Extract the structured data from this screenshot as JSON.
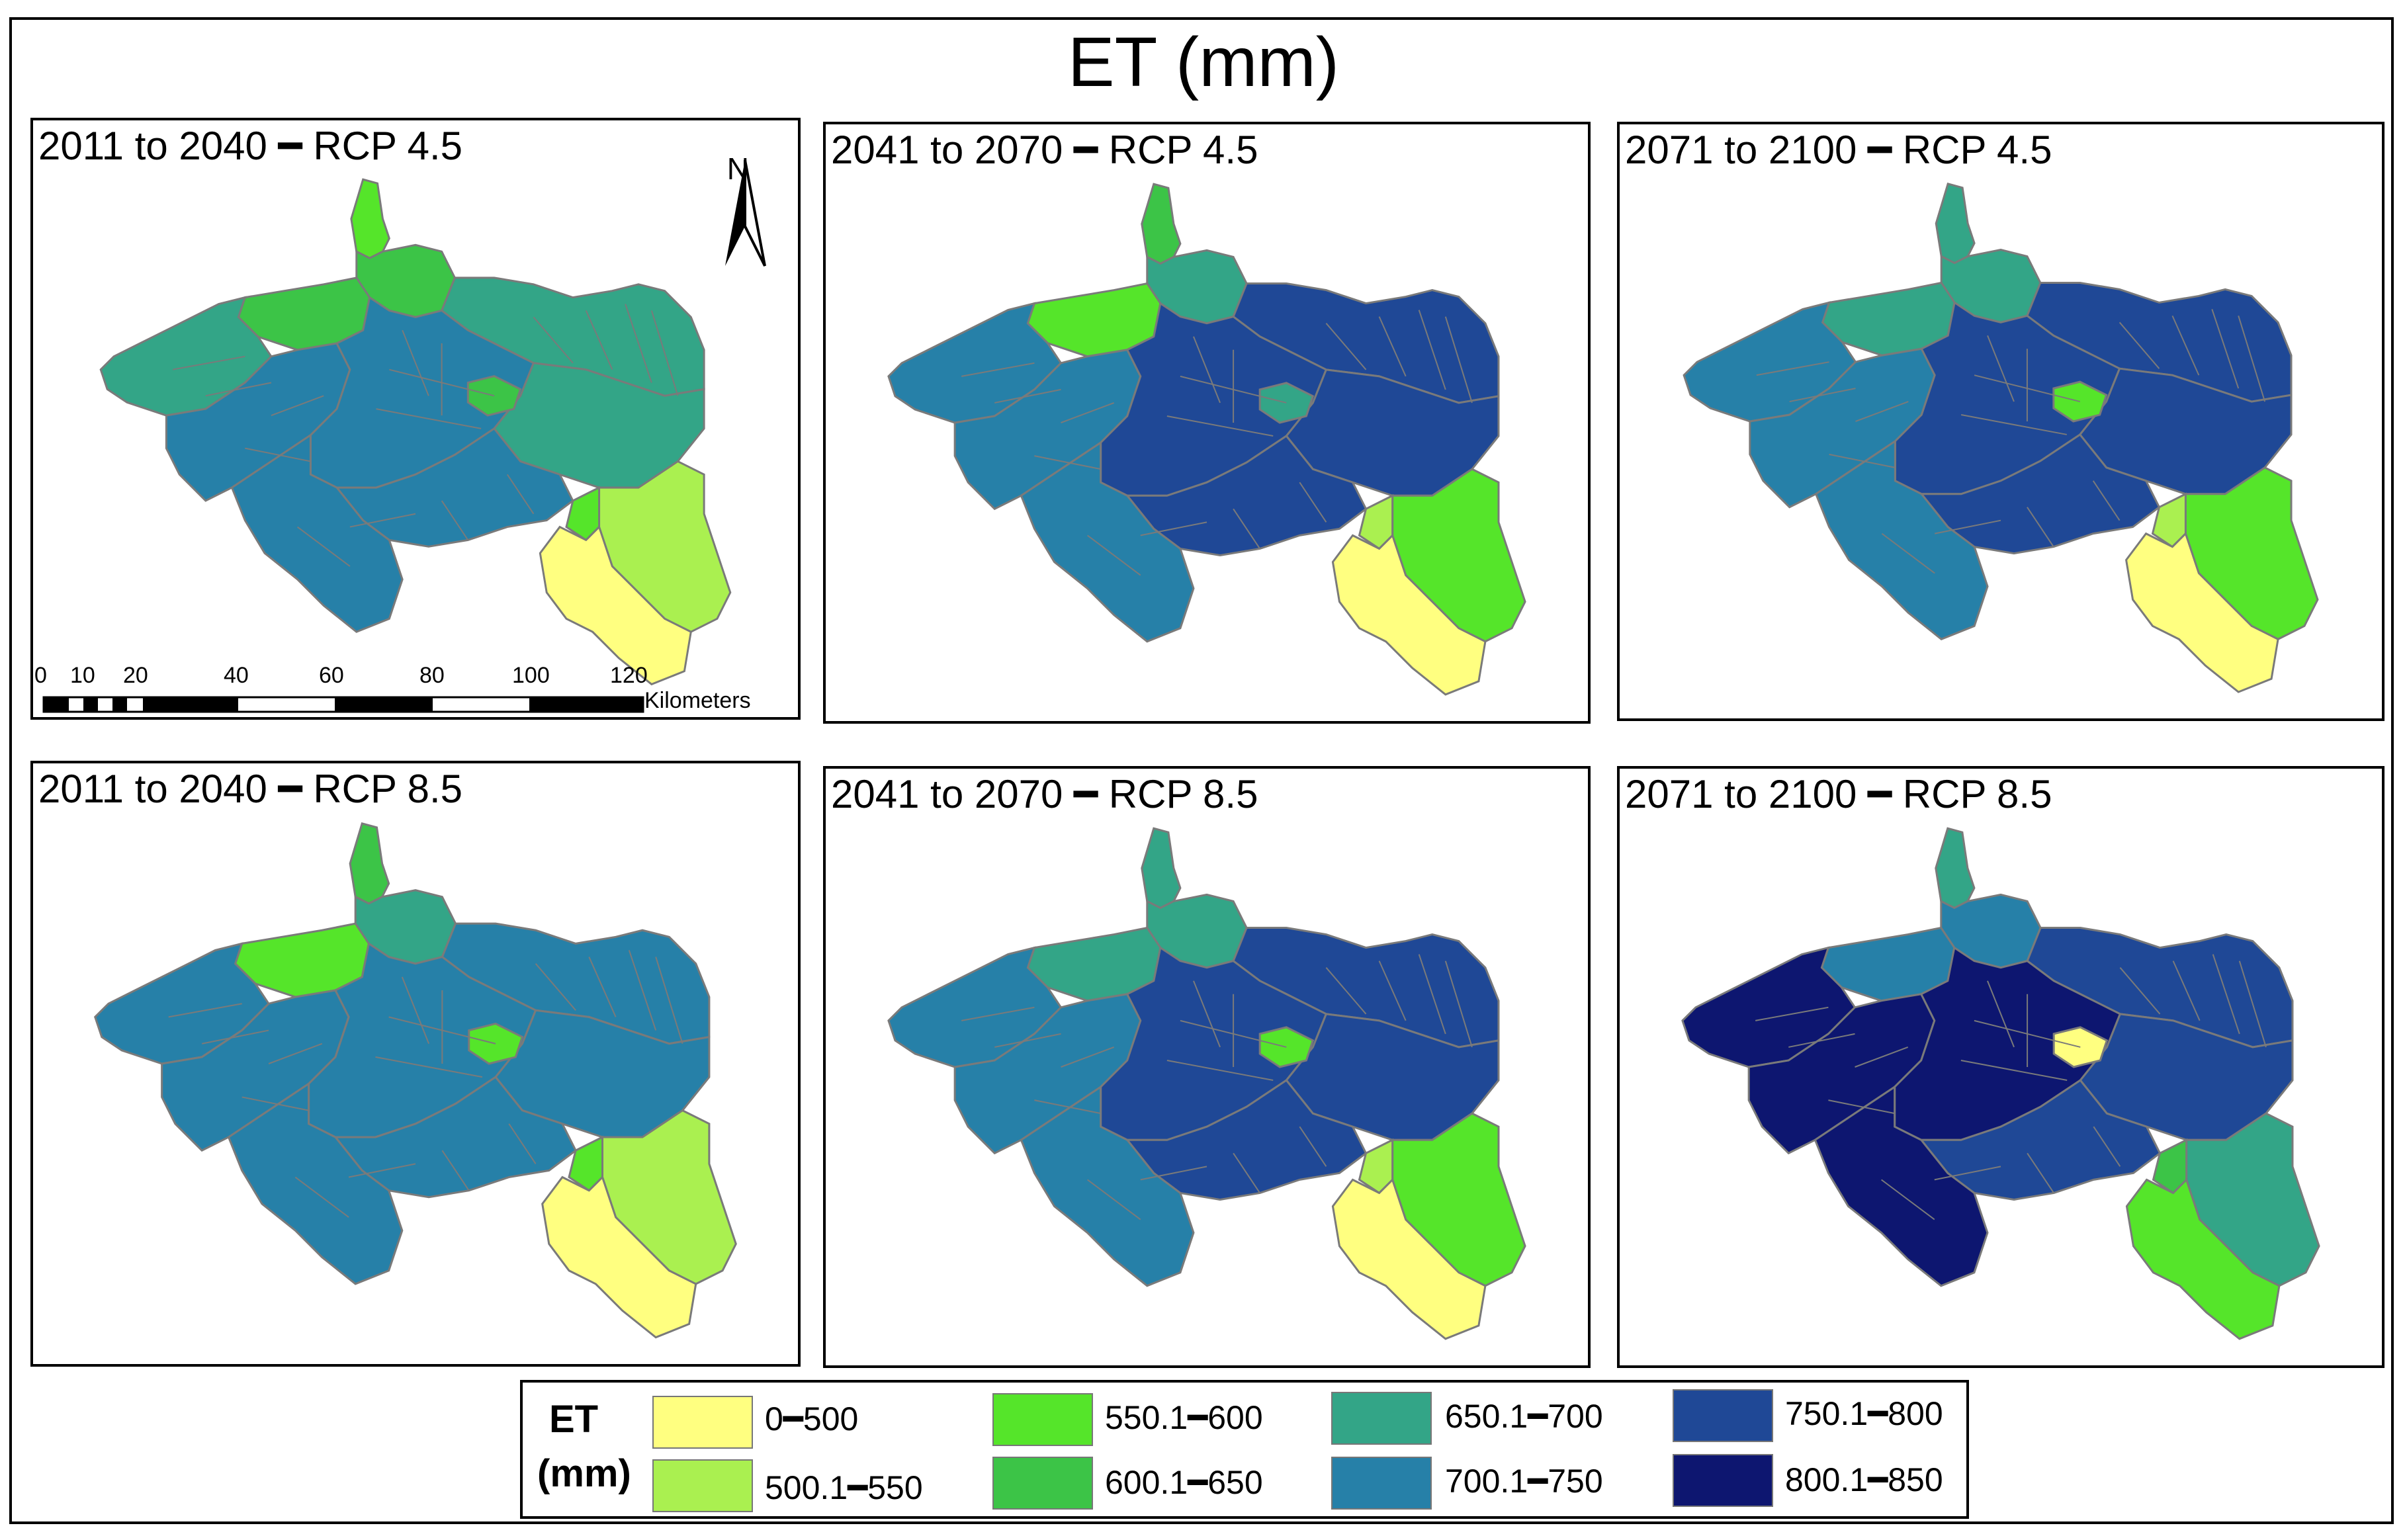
{
  "title": "ET (mm)",
  "colors": {
    "c1": "#ffff80",
    "c2": "#aaf050",
    "c3": "#55e52a",
    "c4": "#3cc447",
    "c5": "#33a587",
    "c6": "#2680a8",
    "c7": "#1f4896",
    "c8": "#0d1670",
    "border": "#7a7a7a"
  },
  "panels": [
    {
      "label": "2011 to 2040 ━ RCP 4.5"
    },
    {
      "label": "2041 to 2070 ━ RCP 4.5"
    },
    {
      "label": "2071 to 2100 ━ RCP 4.5"
    },
    {
      "label": "2011 to 2040 ━ RCP 8.5"
    },
    {
      "label": "2041 to 2070 ━ RCP 8.5"
    },
    {
      "label": "2071 to 2100 ━ RCP 8.5"
    }
  ],
  "north_arrow": "N",
  "scale_bar": {
    "ticks": [
      "0",
      "10",
      "20",
      "40",
      "60",
      "80",
      "100",
      "120"
    ],
    "unit": "Kilometers"
  },
  "legend": {
    "title_line1": "ET",
    "title_line2": "(mm)",
    "items": [
      {
        "label": "0━500",
        "color": "#ffff80"
      },
      {
        "label": "500.1━550",
        "color": "#aaf050"
      },
      {
        "label": "550.1━600",
        "color": "#55e52a"
      },
      {
        "label": "600.1━650",
        "color": "#3cc447"
      },
      {
        "label": "650.1━700",
        "color": "#33a587"
      },
      {
        "label": "700.1━750",
        "color": "#2680a8"
      },
      {
        "label": "750.1━800",
        "color": "#1f4896"
      },
      {
        "label": "800.1━850",
        "color": "#0d1670"
      }
    ]
  },
  "map_classes": [
    {
      "W": "c5",
      "NWA": "c4",
      "N": "c3",
      "NB": "c4",
      "NE": "c5",
      "MW": "c6",
      "MC": "c6",
      "ME": "c5",
      "SC": "c6",
      "SP": "c4",
      "S": "c6",
      "SE": "c2",
      "SX": "c1",
      "SE2": "c3"
    },
    {
      "W": "c6",
      "NWA": "c3",
      "N": "c4",
      "NB": "c5",
      "NE": "c7",
      "MW": "c6",
      "MC": "c7",
      "ME": "c7",
      "SC": "c7",
      "SP": "c5",
      "S": "c6",
      "SE": "c3",
      "SX": "c1",
      "SE2": "c2"
    },
    {
      "W": "c6",
      "NWA": "c5",
      "N": "c5",
      "NB": "c5",
      "NE": "c7",
      "MW": "c6",
      "MC": "c7",
      "ME": "c7",
      "SC": "c7",
      "SP": "c3",
      "S": "c6",
      "SE": "c3",
      "SX": "c1",
      "SE2": "c2"
    },
    {
      "W": "c6",
      "NWA": "c3",
      "N": "c4",
      "NB": "c5",
      "NE": "c6",
      "MW": "c6",
      "MC": "c6",
      "ME": "c6",
      "SC": "c6",
      "SP": "c3",
      "S": "c6",
      "SE": "c2",
      "SX": "c1",
      "SE2": "c3"
    },
    {
      "W": "c6",
      "NWA": "c5",
      "N": "c5",
      "NB": "c5",
      "NE": "c7",
      "MW": "c6",
      "MC": "c7",
      "ME": "c7",
      "SC": "c7",
      "SP": "c3",
      "S": "c6",
      "SE": "c3",
      "SX": "c1",
      "SE2": "c2"
    },
    {
      "W": "c8",
      "NWA": "c6",
      "N": "c5",
      "NB": "c6",
      "NE": "c7",
      "MW": "c8",
      "MC": "c8",
      "ME": "c7",
      "SC": "c7",
      "SP": "c1",
      "S": "c8",
      "SE": "c5",
      "SX": "c3",
      "SE2": "c4"
    }
  ]
}
